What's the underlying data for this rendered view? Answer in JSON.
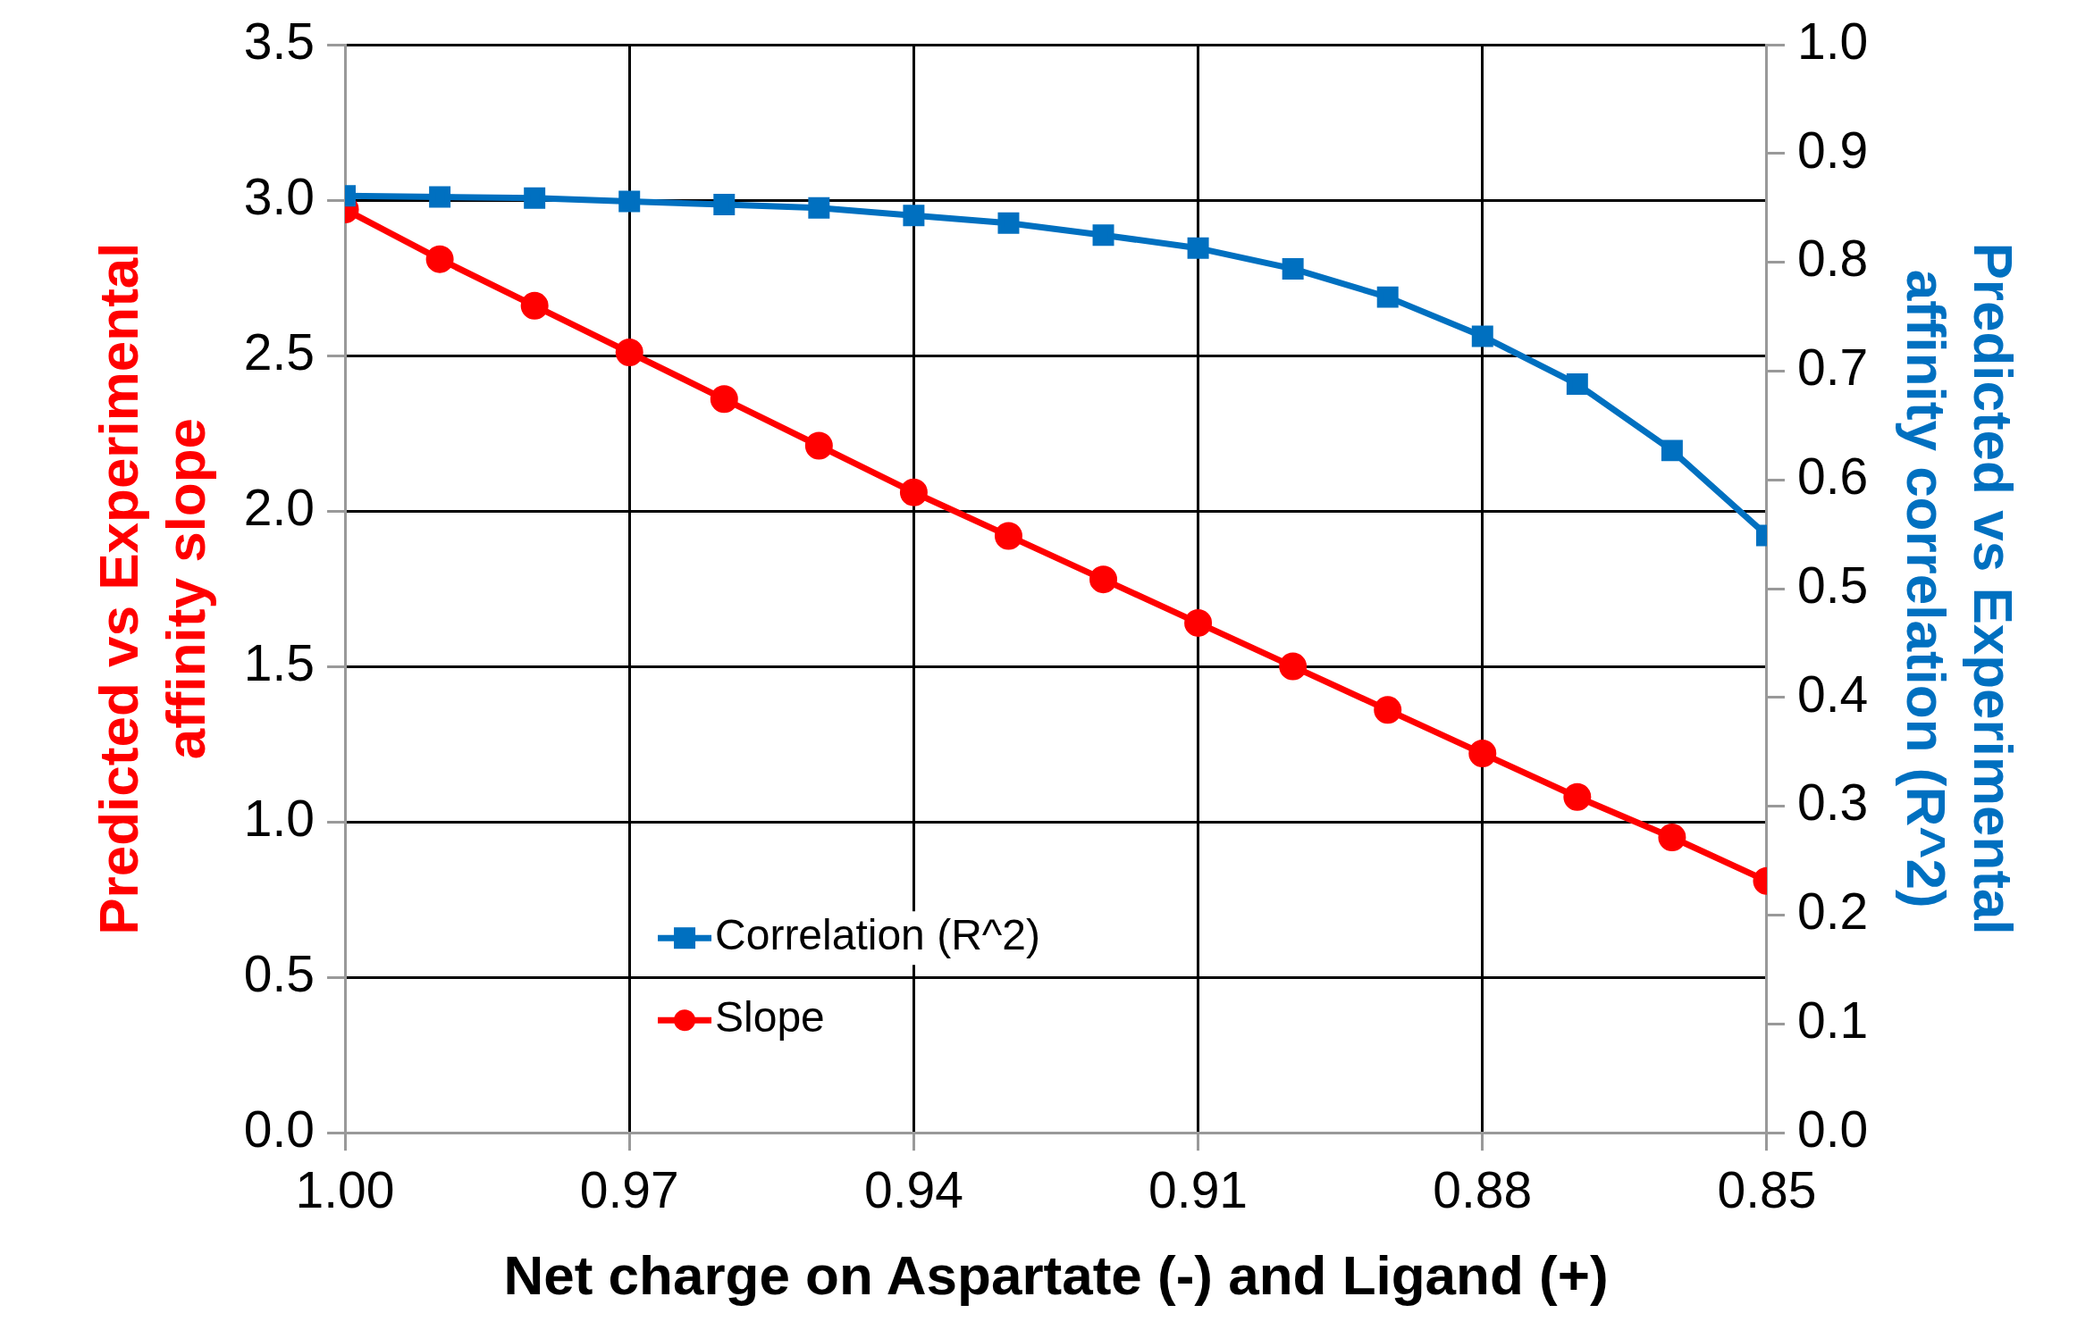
{
  "chart_data": {
    "type": "line",
    "xlabel": "Net charge on Aspartate (-) and Ligand (+)",
    "ylabel": "Predicted vs Experimental affinity slope",
    "y2label": "Predicted vs Experimental affinity correlation (R^2)",
    "x": [
      1.0,
      0.99,
      0.98,
      0.97,
      0.96,
      0.95,
      0.94,
      0.93,
      0.92,
      0.91,
      0.9,
      0.89,
      0.88,
      0.87,
      0.86,
      0.85
    ],
    "series": [
      {
        "name": "Correlation (R^2)",
        "color": "#0070c0",
        "axis": "y2",
        "marker": "square",
        "values": [
          0.861,
          0.86,
          0.859,
          0.856,
          0.853,
          0.85,
          0.843,
          0.836,
          0.825,
          0.813,
          0.794,
          0.768,
          0.732,
          0.688,
          0.627,
          0.549
        ]
      },
      {
        "name": "Slope",
        "color": "#ff0000",
        "marker": "circle",
        "values": [
          2.97,
          2.81,
          2.66,
          2.51,
          2.36,
          2.21,
          2.06,
          1.92,
          1.78,
          1.64,
          1.5,
          1.36,
          1.22,
          1.08,
          0.95,
          0.81
        ]
      }
    ],
    "xlim": [
      1.0,
      0.85
    ],
    "xticks": [
      {
        "value": 1.0,
        "label": "1.00"
      },
      {
        "value": 0.97,
        "label": "0.97"
      },
      {
        "value": 0.94,
        "label": "0.94"
      },
      {
        "value": 0.91,
        "label": "0.91"
      },
      {
        "value": 0.88,
        "label": "0.88"
      },
      {
        "value": 0.85,
        "label": "0.85"
      }
    ],
    "ylim": [
      0,
      3.5
    ],
    "yticks": [
      {
        "value": 0,
        "label": "0.0"
      },
      {
        "value": 0.5,
        "label": "0.5"
      },
      {
        "value": 1,
        "label": "1.0"
      },
      {
        "value": 1.5,
        "label": "1.5"
      },
      {
        "value": 2,
        "label": "2.0"
      },
      {
        "value": 2.5,
        "label": "2.5"
      },
      {
        "value": 3,
        "label": "3.0"
      },
      {
        "value": 3.5,
        "label": "3.5"
      }
    ],
    "y2lim": [
      0,
      1
    ],
    "y2ticks": [
      {
        "value": 0,
        "label": "0.0"
      },
      {
        "value": 0.1,
        "label": "0.1"
      },
      {
        "value": 0.2,
        "label": "0.2"
      },
      {
        "value": 0.3,
        "label": "0.3"
      },
      {
        "value": 0.4,
        "label": "0.4"
      },
      {
        "value": 0.5,
        "label": "0.5"
      },
      {
        "value": 0.6,
        "label": "0.6"
      },
      {
        "value": 0.7,
        "label": "0.7"
      },
      {
        "value": 0.8,
        "label": "0.8"
      },
      {
        "value": 0.9,
        "label": "0.9"
      },
      {
        "value": 1,
        "label": "1.0"
      }
    ],
    "grid": true,
    "legend": "bottom left",
    "line_style": "solid"
  }
}
